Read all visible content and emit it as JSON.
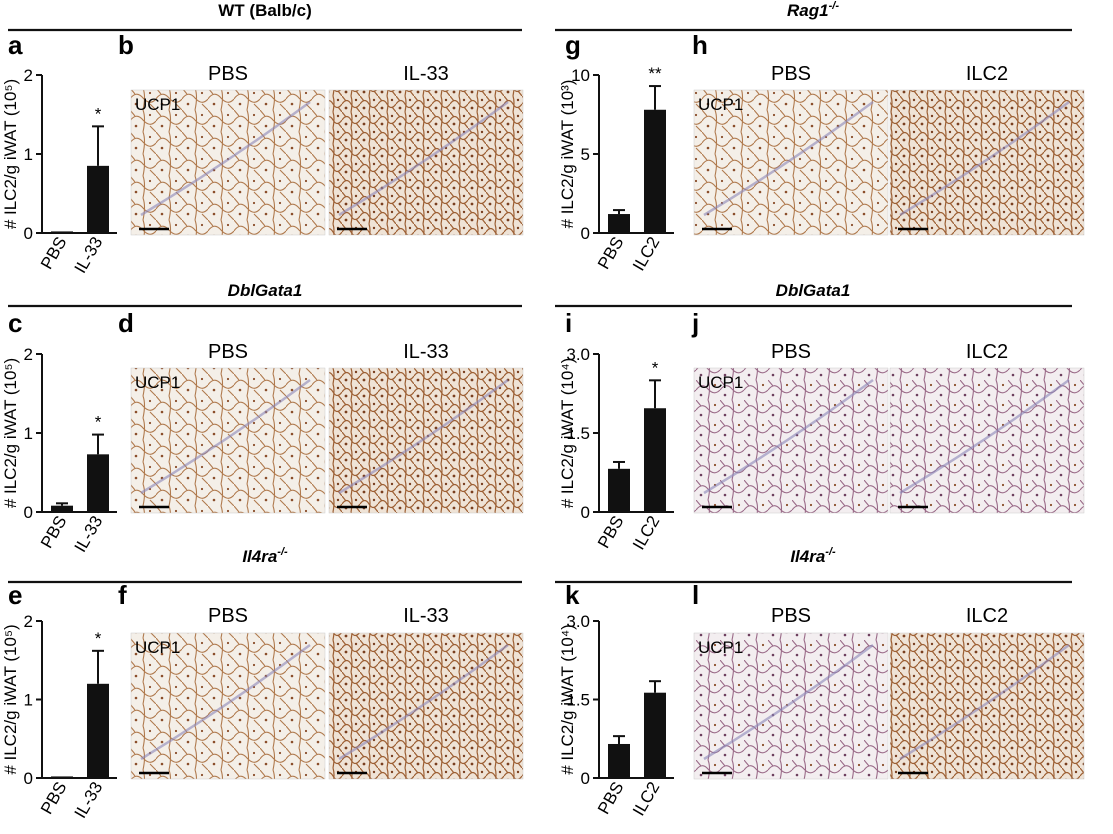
{
  "figure": {
    "columns": [
      {
        "title": "WT (Balb/c)",
        "rows": [
          {
            "chart_letter": "a",
            "image_letter": "b",
            "conditions": [
              "PBS",
              "IL-33"
            ],
            "stain": "UCP1"
          },
          null,
          null
        ]
      }
    ]
  },
  "headers": {
    "left": [
      "WT (Balb/c)",
      "DblGata1",
      "Il4ra-/-"
    ],
    "right": [
      "Rag1-/-",
      "DblGata1",
      "Il4ra-/-"
    ]
  },
  "micro_panels": [
    {
      "letter": "b",
      "conditions": [
        "PBS",
        "IL-33"
      ],
      "stain": "UCP1",
      "tint": "#a86a3a"
    },
    {
      "letter": "d",
      "conditions": [
        "PBS",
        "IL-33"
      ],
      "stain": "UCP1",
      "tint": "#a8703a"
    },
    {
      "letter": "f",
      "conditions": [
        "PBS",
        "IL-33"
      ],
      "stain": "UCP1",
      "tint": "#a87a45"
    },
    {
      "letter": "h",
      "conditions": [
        "PBS",
        "ILC2"
      ],
      "stain": "UCP1",
      "tint": "#a86a3a"
    },
    {
      "letter": "j",
      "conditions": [
        "PBS",
        "ILC2"
      ],
      "stain": "UCP1",
      "tint": "#8a5070"
    },
    {
      "letter": "l",
      "conditions": [
        "PBS",
        "ILC2"
      ],
      "stain": "UCP1",
      "tint": "#94503a"
    }
  ],
  "chart_data": [
    {
      "letter": "a",
      "type": "bar",
      "categories": [
        "PBS",
        "IL-33"
      ],
      "values": [
        0.02,
        0.85
      ],
      "errors": [
        0.0,
        0.5
      ],
      "ylabel": "# ILC2/g iWAT (10⁵)",
      "ylim": [
        0,
        2
      ],
      "yticks": [
        "0",
        "1",
        "2"
      ],
      "significance": [
        "",
        "*"
      ]
    },
    {
      "letter": "c",
      "type": "bar",
      "categories": [
        "PBS",
        "IL-33"
      ],
      "values": [
        0.08,
        0.73
      ],
      "errors": [
        0.03,
        0.25
      ],
      "ylabel": "# ILC2/g iWAT (10⁵)",
      "ylim": [
        0,
        2
      ],
      "yticks": [
        "0",
        "1",
        "2"
      ],
      "significance": [
        "",
        "*"
      ]
    },
    {
      "letter": "e",
      "type": "bar",
      "categories": [
        "PBS",
        "IL-33"
      ],
      "values": [
        0.02,
        1.2
      ],
      "errors": [
        0.0,
        0.42
      ],
      "ylabel": "# ILC2/g iWAT (10⁵)",
      "ylim": [
        0,
        2
      ],
      "yticks": [
        "0",
        "1",
        "2"
      ],
      "significance": [
        "",
        "*"
      ]
    },
    {
      "letter": "g",
      "type": "bar",
      "categories": [
        "PBS",
        "ILC2"
      ],
      "values": [
        1.2,
        7.8
      ],
      "errors": [
        0.25,
        1.5
      ],
      "ylabel": "# ILC2/g iWAT (10³)",
      "ylim": [
        0,
        10
      ],
      "yticks": [
        "0",
        "5",
        "10"
      ],
      "significance": [
        "",
        "**"
      ]
    },
    {
      "letter": "i",
      "type": "bar",
      "categories": [
        "PBS",
        "ILC2"
      ],
      "values": [
        0.82,
        1.97
      ],
      "errors": [
        0.13,
        0.53
      ],
      "ylabel": "# ILC2/g iWAT (10⁴)",
      "ylim": [
        0,
        3
      ],
      "yticks": [
        "0",
        "1.5",
        "3.0"
      ],
      "significance": [
        "",
        "*"
      ]
    },
    {
      "letter": "k",
      "type": "bar",
      "categories": [
        "PBS",
        "ILC2"
      ],
      "values": [
        0.65,
        1.63
      ],
      "errors": [
        0.15,
        0.22
      ],
      "ylabel": "# ILC2/g iWAT (10⁴)",
      "ylim": [
        0,
        3
      ],
      "yticks": [
        "0",
        "1.5",
        "3.0"
      ],
      "significance": [
        "",
        ""
      ]
    }
  ]
}
